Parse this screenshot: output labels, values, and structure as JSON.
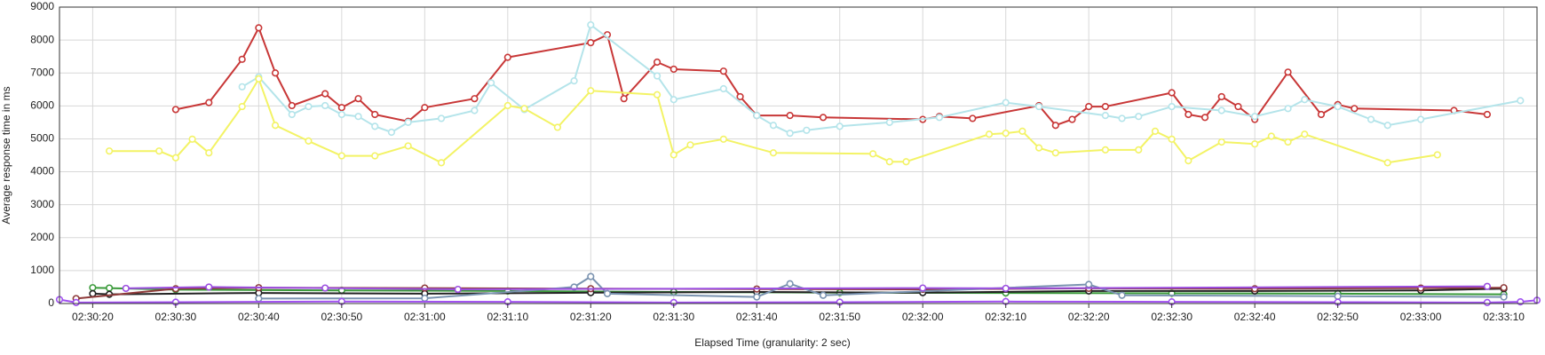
{
  "chart_data": {
    "type": "line",
    "x_label": "Elapsed Time (granularity: 2 sec)",
    "y_label": "Average response time in ms",
    "xlim": [
      "02:30:16",
      "02:33:14"
    ],
    "xticks": [
      "02:30:20",
      "02:30:30",
      "02:30:40",
      "02:30:50",
      "02:31:00",
      "02:31:10",
      "02:31:20",
      "02:31:30",
      "02:31:40",
      "02:31:50",
      "02:32:00",
      "02:32:10",
      "02:32:20",
      "02:32:30",
      "02:32:40",
      "02:32:50",
      "02:33:00",
      "02:33:10"
    ],
    "ylim": [
      0,
      9000
    ],
    "yticks": [
      0,
      1000,
      2000,
      3000,
      4000,
      5000,
      6000,
      7000,
      8000,
      9000
    ],
    "grid": true,
    "series": [
      {
        "color": "#c83737",
        "x": [
          "02:30:30",
          "02:30:34",
          "02:30:38",
          "02:30:40",
          "02:30:42",
          "02:30:44",
          "02:30:48",
          "02:30:50",
          "02:30:52",
          "02:30:54",
          "02:30:58",
          "02:31:00",
          "02:31:06",
          "02:31:10",
          "02:31:20",
          "02:31:22",
          "02:31:24",
          "02:31:28",
          "02:31:30",
          "02:31:36",
          "02:31:38",
          "02:31:40",
          "02:31:44",
          "02:31:48",
          "02:32:00",
          "02:32:02",
          "02:32:06",
          "02:32:14",
          "02:32:16",
          "02:32:18",
          "02:32:20",
          "02:32:22",
          "02:32:30",
          "02:32:32",
          "02:32:34",
          "02:32:36",
          "02:32:38",
          "02:32:40",
          "02:32:44",
          "02:32:48",
          "02:32:50",
          "02:32:52",
          "02:33:04",
          "02:33:08"
        ],
        "values": [
          5890,
          6100,
          7415,
          8370,
          7000,
          6010,
          6370,
          5950,
          6220,
          5740,
          5530,
          5950,
          6220,
          7475,
          7920,
          8160,
          6220,
          7330,
          7115,
          7055,
          6280,
          5710,
          5710,
          5650,
          5590,
          5680,
          5620,
          6010,
          5410,
          5590,
          5980,
          5980,
          6400,
          5740,
          5650,
          6280,
          5980,
          5590,
          7025,
          5740,
          6040,
          5920,
          5860,
          5740
        ]
      },
      {
        "color": "#b4e4ea",
        "x": [
          "02:30:38",
          "02:30:40",
          "02:30:44",
          "02:30:46",
          "02:30:48",
          "02:30:50",
          "02:30:52",
          "02:30:54",
          "02:30:56",
          "02:30:58",
          "02:31:02",
          "02:31:06",
          "02:31:08",
          "02:31:12",
          "02:31:18",
          "02:31:20",
          "02:31:28",
          "02:31:30",
          "02:31:36",
          "02:31:40",
          "02:31:42",
          "02:31:44",
          "02:31:46",
          "02:31:50",
          "02:31:56",
          "02:32:02",
          "02:32:10",
          "02:32:14",
          "02:32:22",
          "02:32:24",
          "02:32:26",
          "02:32:30",
          "02:32:36",
          "02:32:40",
          "02:32:44",
          "02:32:46",
          "02:32:50",
          "02:32:54",
          "02:32:56",
          "02:33:00",
          "02:33:12"
        ],
        "values": [
          6580,
          6880,
          5740,
          5980,
          6010,
          5740,
          5680,
          5380,
          5200,
          5500,
          5620,
          5860,
          6700,
          5890,
          6760,
          8460,
          6910,
          6190,
          6520,
          5710,
          5410,
          5170,
          5260,
          5380,
          5500,
          5650,
          6100,
          5980,
          5710,
          5620,
          5680,
          5980,
          5860,
          5680,
          5920,
          6190,
          5980,
          5590,
          5410,
          5590,
          6160
        ]
      },
      {
        "color": "#f3f365",
        "x": [
          "02:30:22",
          "02:30:28",
          "02:30:30",
          "02:30:32",
          "02:30:34",
          "02:30:38",
          "02:30:40",
          "02:30:42",
          "02:30:46",
          "02:30:50",
          "02:30:54",
          "02:30:58",
          "02:31:02",
          "02:31:10",
          "02:31:12",
          "02:31:16",
          "02:31:20",
          "02:31:28",
          "02:31:30",
          "02:31:32",
          "02:31:36",
          "02:31:42",
          "02:31:54",
          "02:31:56",
          "02:31:58",
          "02:32:08",
          "02:32:10",
          "02:32:12",
          "02:32:14",
          "02:32:16",
          "02:32:22",
          "02:32:26",
          "02:32:28",
          "02:32:30",
          "02:32:32",
          "02:32:36",
          "02:32:40",
          "02:32:42",
          "02:32:44",
          "02:32:46",
          "02:32:56",
          "02:33:02"
        ],
        "values": [
          4630,
          4630,
          4425,
          4990,
          4575,
          5980,
          6820,
          5410,
          4935,
          4485,
          4485,
          4785,
          4275,
          6010,
          5920,
          5350,
          6460,
          6340,
          4515,
          4815,
          4990,
          4575,
          4545,
          4305,
          4305,
          5140,
          5170,
          5230,
          4725,
          4575,
          4665,
          4665,
          5230,
          4990,
          4335,
          4905,
          4845,
          5080,
          4905,
          5140,
          4275,
          4515
        ]
      },
      {
        "color": "#3a9a3a",
        "x": [
          "02:30:20",
          "02:30:22",
          "02:30:30",
          "02:30:50",
          "02:31:10",
          "02:31:30",
          "02:31:50",
          "02:32:10",
          "02:32:30",
          "02:32:50",
          "02:33:10"
        ],
        "values": [
          480,
          470,
          420,
          400,
          380,
          350,
          330,
          320,
          310,
          300,
          280
        ]
      },
      {
        "color": "#222222",
        "x": [
          "02:30:20",
          "02:30:22",
          "02:30:40",
          "02:31:00",
          "02:31:20",
          "02:31:40",
          "02:32:00",
          "02:32:20",
          "02:32:40",
          "02:33:00",
          "02:33:10"
        ],
        "values": [
          300,
          280,
          320,
          300,
          330,
          350,
          330,
          380,
          380,
          400,
          450
        ]
      },
      {
        "color": "#8e3a3a",
        "x": [
          "02:30:18",
          "02:30:30",
          "02:30:40",
          "02:31:00",
          "02:31:20",
          "02:31:40",
          "02:32:00",
          "02:32:20",
          "02:32:40",
          "02:33:00",
          "02:33:10"
        ],
        "values": [
          150,
          450,
          480,
          470,
          450,
          440,
          430,
          460,
          450,
          470,
          480
        ]
      },
      {
        "color": "#7a93b0",
        "x": [
          "02:30:40",
          "02:31:00",
          "02:31:18",
          "02:31:20",
          "02:31:22",
          "02:31:40",
          "02:31:44",
          "02:31:48",
          "02:32:20",
          "02:32:24",
          "02:32:50",
          "02:33:10"
        ],
        "values": [
          150,
          160,
          500,
          820,
          300,
          200,
          600,
          250,
          580,
          250,
          220,
          200
        ]
      },
      {
        "color": "#9b4de0",
        "x": [
          "02:30:24",
          "02:30:34",
          "02:30:48",
          "02:31:04",
          "02:32:00",
          "02:32:10",
          "02:33:08"
        ],
        "values": [
          460,
          500,
          470,
          430,
          470,
          460,
          520
        ]
      },
      {
        "color": "#a050f0",
        "x": [
          "02:30:16",
          "02:30:18",
          "02:30:30",
          "02:30:50",
          "02:31:10",
          "02:31:30",
          "02:31:50",
          "02:32:10",
          "02:32:30",
          "02:32:50",
          "02:33:08",
          "02:33:12",
          "02:33:14"
        ],
        "values": [
          120,
          30,
          40,
          60,
          50,
          30,
          40,
          60,
          50,
          40,
          30,
          50,
          100
        ]
      }
    ]
  }
}
